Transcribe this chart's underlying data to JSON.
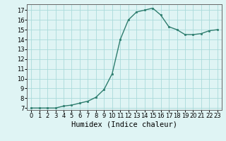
{
  "x": [
    0,
    1,
    2,
    3,
    4,
    5,
    6,
    7,
    8,
    9,
    10,
    11,
    12,
    13,
    14,
    15,
    16,
    17,
    18,
    19,
    20,
    21,
    22,
    23
  ],
  "y": [
    7,
    7,
    7,
    7,
    7.2,
    7.3,
    7.5,
    7.7,
    8.1,
    8.9,
    10.5,
    14.0,
    16.0,
    16.8,
    17.0,
    17.2,
    16.5,
    15.3,
    15.0,
    14.5,
    14.5,
    14.6,
    14.9,
    15.0
  ],
  "line_color": "#2e7d6e",
  "marker": "s",
  "marker_size": 2.0,
  "bg_color": "#dff4f4",
  "grid_color": "#aadada",
  "xlabel": "Humidex (Indice chaleur)",
  "ylim": [
    6.8,
    17.6
  ],
  "xlim": [
    -0.5,
    23.5
  ],
  "yticks": [
    7,
    8,
    9,
    10,
    11,
    12,
    13,
    14,
    15,
    16,
    17
  ],
  "xticks": [
    0,
    1,
    2,
    3,
    4,
    5,
    6,
    7,
    8,
    9,
    10,
    11,
    12,
    13,
    14,
    15,
    16,
    17,
    18,
    19,
    20,
    21,
    22,
    23
  ],
  "tick_label_fontsize": 6,
  "xlabel_fontsize": 7.5
}
